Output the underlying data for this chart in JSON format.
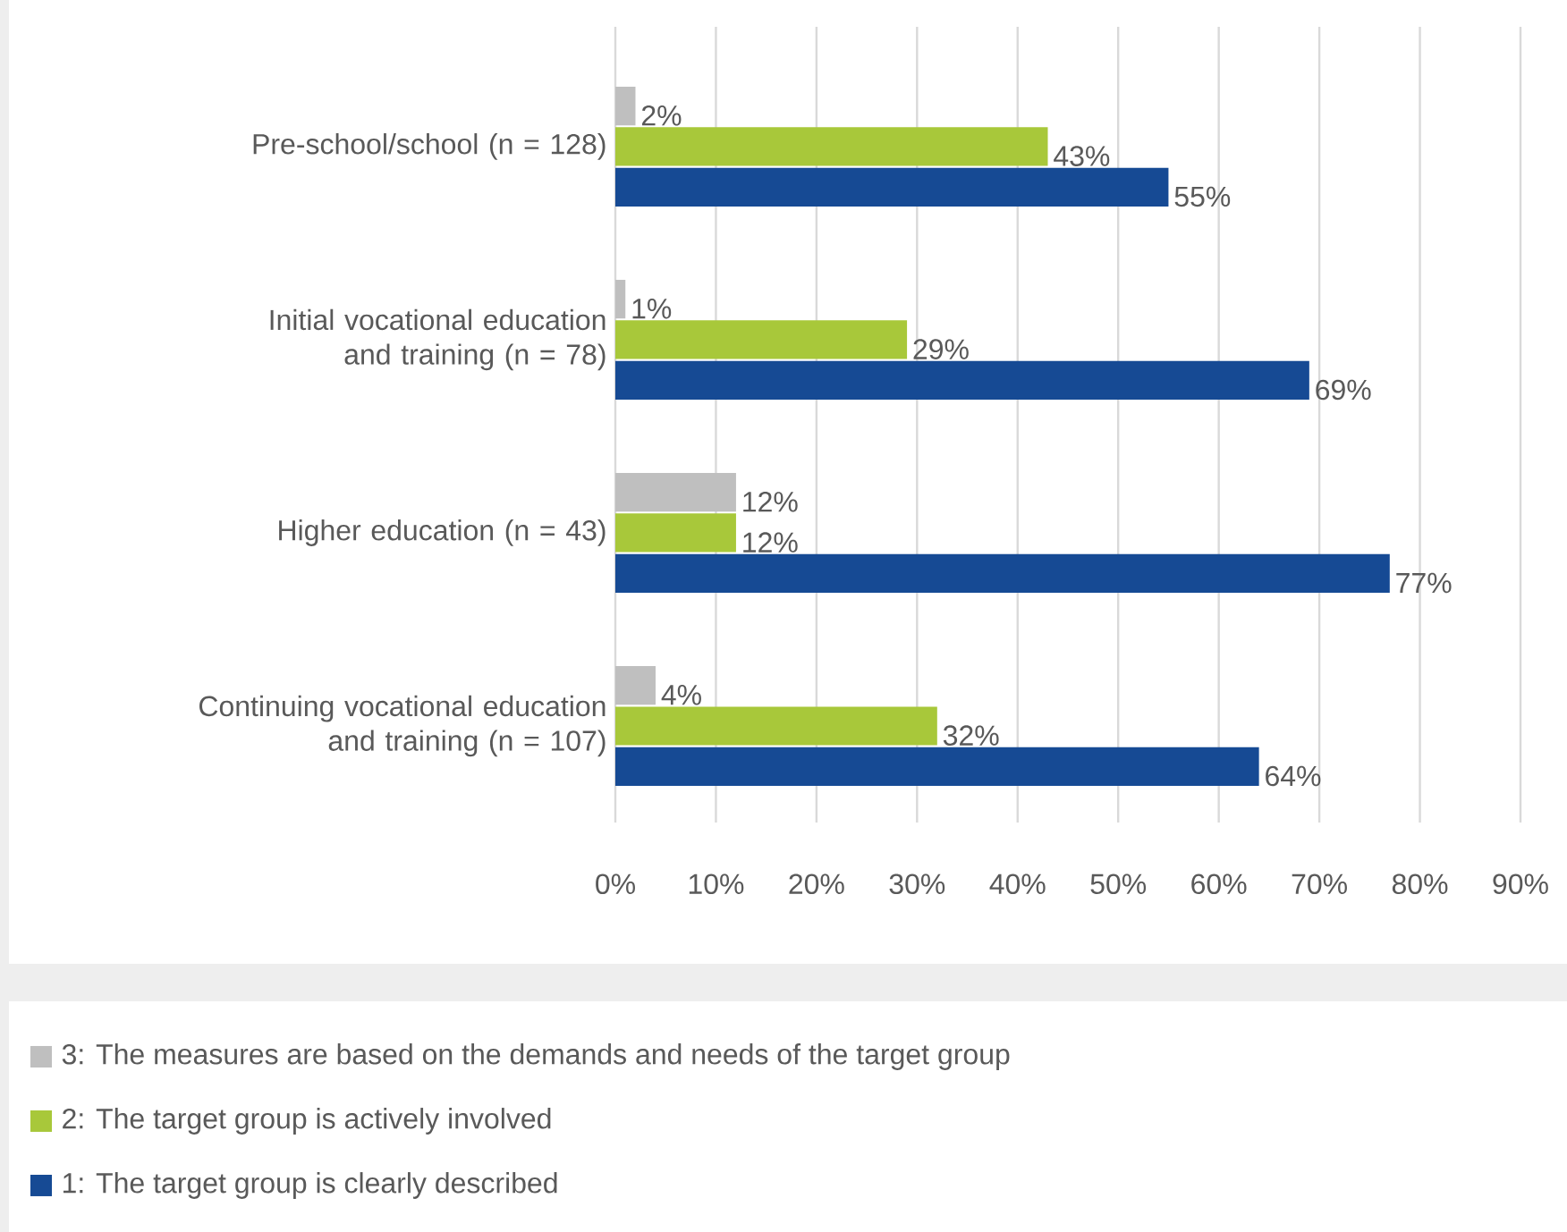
{
  "chart_data": {
    "type": "bar",
    "orientation": "horizontal",
    "categories": [
      "Pre-school/school (n = 128)",
      "Initial vocational education and training (n = 78)",
      "Higher education (n = 43)",
      "Continuing vocational education and training (n = 107)"
    ],
    "series": [
      {
        "name": "3: The measures are based on the demands and needs of the target group",
        "color": "#bfbfbf",
        "values": [
          2,
          1,
          12,
          4
        ],
        "value_labels": [
          "2%",
          "1%",
          "12%",
          "4%"
        ]
      },
      {
        "name": "2: The target group is actively involved",
        "color": "#a8c83a",
        "values": [
          43,
          29,
          12,
          32
        ],
        "value_labels": [
          "43%",
          "29%",
          "12%",
          "32%"
        ]
      },
      {
        "name": "1: The target group is clearly described",
        "color": "#164a94",
        "values": [
          55,
          69,
          77,
          64
        ],
        "value_labels": [
          "55%",
          "69%",
          "77%",
          "64%"
        ]
      }
    ],
    "xlim": [
      0,
      90
    ],
    "xticks": [
      {
        "value": 0,
        "label": "0%"
      },
      {
        "value": 10,
        "label": "10%"
      },
      {
        "value": 20,
        "label": "20%"
      },
      {
        "value": 30,
        "label": "30%"
      },
      {
        "value": 40,
        "label": "40%"
      },
      {
        "value": 50,
        "label": "50%"
      },
      {
        "value": 60,
        "label": "60%"
      },
      {
        "value": 70,
        "label": "70%"
      },
      {
        "value": 80,
        "label": "80%"
      },
      {
        "value": 90,
        "label": "90%"
      }
    ],
    "grid": "x",
    "legend": "bottom"
  }
}
